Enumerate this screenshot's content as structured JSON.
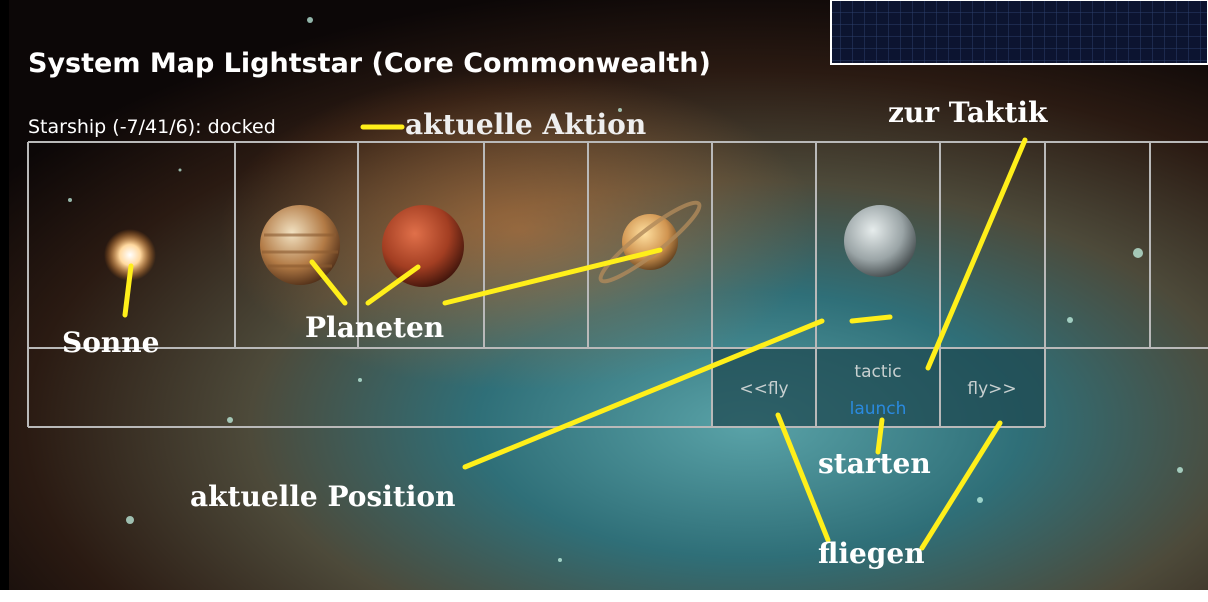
{
  "header": {
    "title": "System Map Lightstar (Core Commonwealth)",
    "status": "Starship (-7/41/6): docked"
  },
  "controls": {
    "fly_back": "<<fly",
    "tactic": "tactic",
    "launch": "launch",
    "fly_forward": "fly>>"
  },
  "annotations": {
    "action": "aktuelle Aktion",
    "tactic": "zur Taktik",
    "sun": "Sonne",
    "planets": "Planeten",
    "position": "aktuelle Position",
    "launch": "starten",
    "fly": "fliegen"
  }
}
